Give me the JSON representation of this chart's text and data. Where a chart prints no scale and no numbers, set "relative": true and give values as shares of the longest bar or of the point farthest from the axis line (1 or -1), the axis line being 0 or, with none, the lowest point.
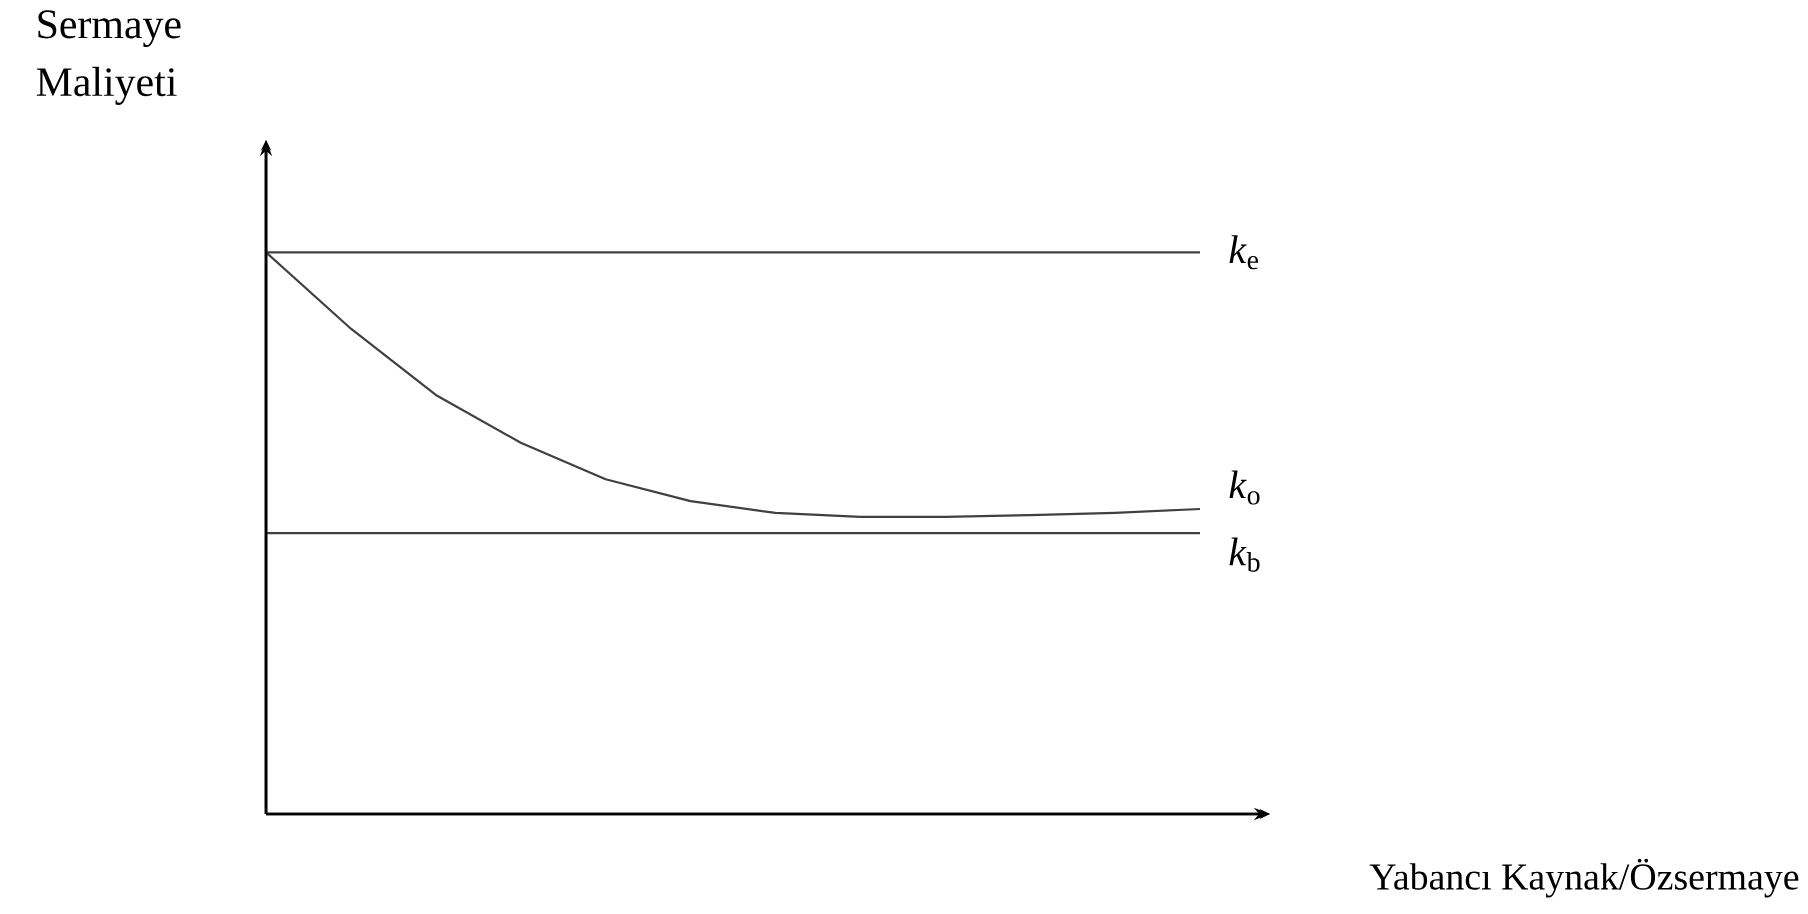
{
  "chart_data": {
    "type": "line",
    "relative": true,
    "ylabel": "Sermaye Maliyeti",
    "xlabel": "Yabancı Kaynak/Özsermaye",
    "categories": [
      null,
      null,
      null,
      null,
      null,
      null,
      null,
      null,
      null,
      null,
      null,
      null
    ],
    "series": [
      {
        "name": "*k*$_{e}$",
        "color": "#404040",
        "values": [
          1,
          1,
          1,
          1,
          1,
          1,
          1,
          1,
          1,
          1,
          1,
          1
        ]
      },
      {
        "name": "*k*$_{o}$",
        "color": "#404040",
        "values": [
          1,
          0.864,
          0.746,
          0.661,
          0.596,
          0.557,
          0.536,
          0.529,
          0.529,
          0.532,
          0.536,
          0.543
        ]
      },
      {
        "name": "*k*$_{b}$",
        "color": "#404040",
        "values": [
          0.5,
          0.5,
          0.5,
          0.5,
          0.5,
          0.5,
          0.5,
          0.5,
          0.5,
          0.5,
          0.5,
          0.5
        ]
      }
    ],
    "marker": "none",
    "line_style": "solid"
  }
}
